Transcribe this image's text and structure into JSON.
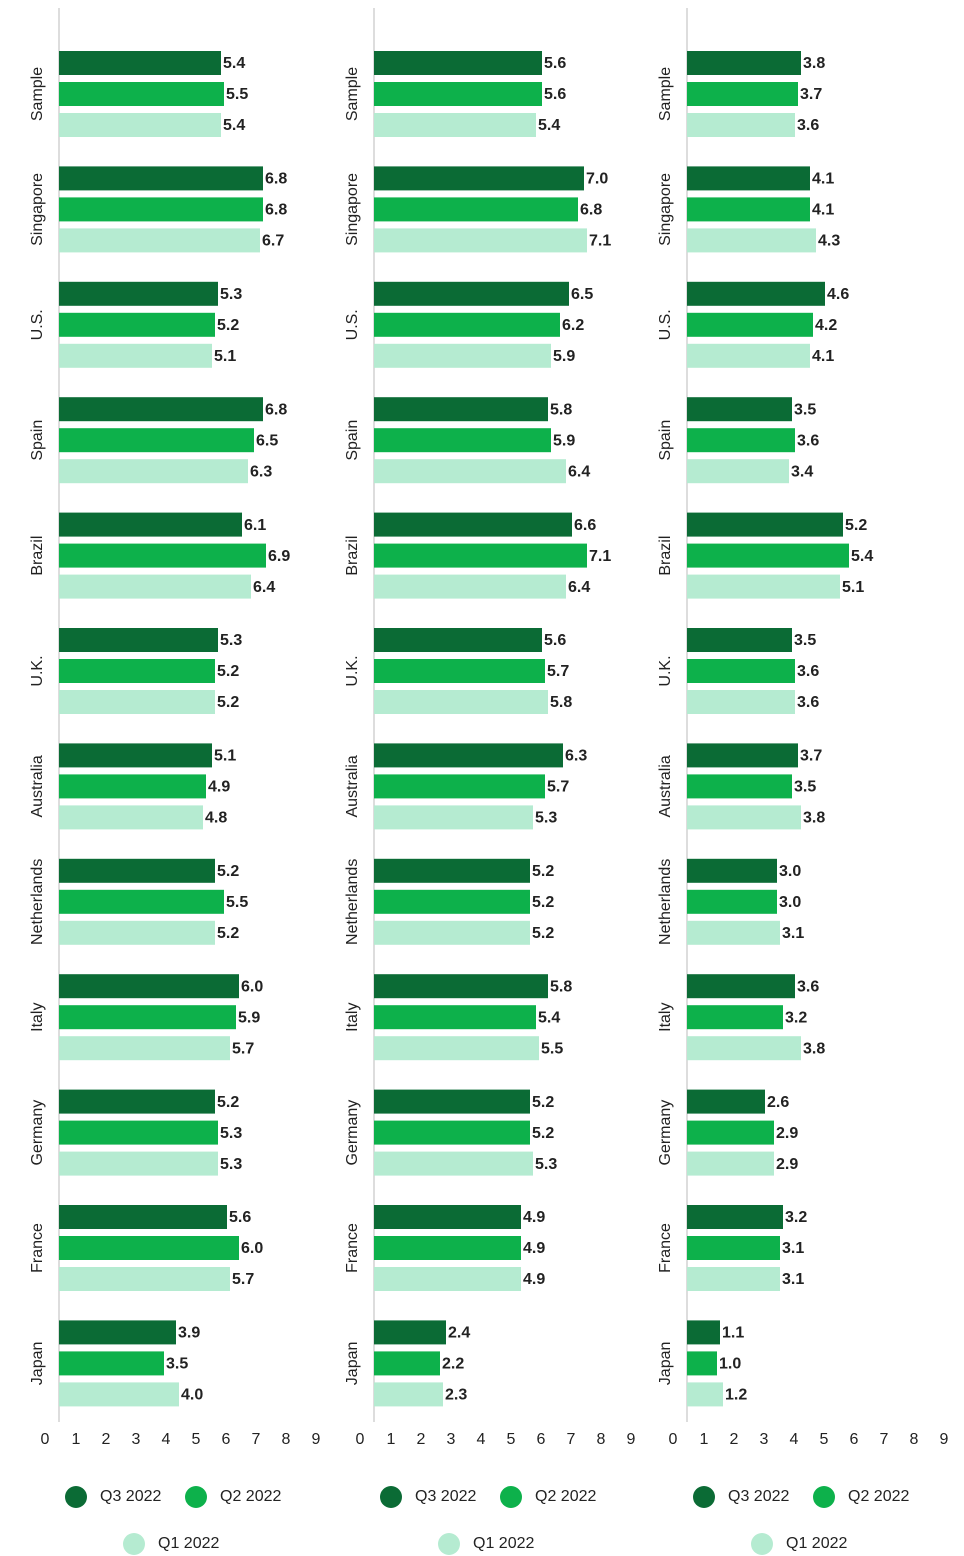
{
  "chart_data": [
    {
      "type": "bar",
      "orientation": "horizontal",
      "categories": [
        "Sample",
        "Singapore",
        "U.S.",
        "Spain",
        "Brazil",
        "U.K.",
        "Australia",
        "Netherlands",
        "Italy",
        "Germany",
        "France",
        "Japan"
      ],
      "series": [
        {
          "name": "Q3 2022",
          "color": "#0b6b35",
          "values": [
            5.4,
            6.8,
            5.3,
            6.8,
            6.1,
            5.3,
            5.1,
            5.2,
            6.0,
            5.2,
            5.6,
            3.9
          ],
          "value_labels": [
            "5.4",
            "6.8",
            "5.3",
            "6.8",
            "6.1",
            "5.3",
            "5.1",
            "5.2",
            "6.0",
            "5.2",
            "5.6",
            "3.9"
          ]
        },
        {
          "name": "Q2 2022",
          "color": "#0db14b",
          "values": [
            5.5,
            6.8,
            5.2,
            6.5,
            6.9,
            5.2,
            4.9,
            5.5,
            5.9,
            5.3,
            6.0,
            3.5
          ],
          "value_labels": [
            "5.5",
            "6.8",
            "5.2",
            "6.5",
            "6.9",
            "5.2",
            "4.9",
            "5.5",
            "5.9",
            "5.3",
            "6.0",
            "3.5"
          ]
        },
        {
          "name": "Q1 2022",
          "color": "#b5ebd1",
          "values": [
            5.4,
            6.7,
            5.1,
            6.3,
            6.4,
            5.2,
            4.8,
            5.2,
            5.7,
            5.3,
            5.7,
            4.0
          ],
          "value_labels": [
            "5.4",
            "6.7",
            "5.1",
            "6.3",
            "6.4",
            "5.2",
            "4.8",
            "5.2",
            "5.7",
            "5.3",
            "5.7",
            "4.0"
          ]
        }
      ],
      "xlim": [
        0,
        9
      ],
      "xticks": [
        0,
        1,
        2,
        3,
        4,
        5,
        6,
        7,
        8,
        9
      ]
    },
    {
      "type": "bar",
      "orientation": "horizontal",
      "categories": [
        "Sample",
        "Singapore",
        "U.S.",
        "Spain",
        "Brazil",
        "U.K.",
        "Australia",
        "Netherlands",
        "Italy",
        "Germany",
        "France",
        "Japan"
      ],
      "series": [
        {
          "name": "Q3 2022",
          "color": "#0b6b35",
          "values": [
            5.6,
            7.0,
            6.5,
            5.8,
            6.6,
            5.6,
            6.3,
            5.2,
            5.8,
            5.2,
            4.9,
            2.4
          ],
          "value_labels": [
            "5.6",
            "7.0",
            "6.5",
            "5.8",
            "6.6",
            "5.6",
            "6.3",
            "5.2",
            "5.8",
            "5.2",
            "4.9",
            "2.4"
          ]
        },
        {
          "name": "Q2 2022",
          "color": "#0db14b",
          "values": [
            5.6,
            6.8,
            6.2,
            5.9,
            7.1,
            5.7,
            5.7,
            5.2,
            5.4,
            5.2,
            4.9,
            2.2
          ],
          "value_labels": [
            "5.6",
            "6.8",
            "6.2",
            "5.9",
            "7.1",
            "5.7",
            "5.7",
            "5.2",
            "5.4",
            "5.2",
            "4.9",
            "2.2"
          ]
        },
        {
          "name": "Q1 2022",
          "color": "#b5ebd1",
          "values": [
            5.4,
            7.1,
            5.9,
            6.4,
            6.4,
            5.8,
            5.3,
            5.2,
            5.5,
            5.3,
            4.9,
            2.3
          ],
          "value_labels": [
            "5.4",
            "7.1",
            "5.9",
            "6.4",
            "6.4",
            "5.8",
            "5.3",
            "5.2",
            "5.5",
            "5.3",
            "4.9",
            "2.3"
          ]
        }
      ],
      "xlim": [
        0,
        9
      ],
      "xticks": [
        0,
        1,
        2,
        3,
        4,
        5,
        6,
        7,
        8,
        9
      ]
    },
    {
      "type": "bar",
      "orientation": "horizontal",
      "categories": [
        "Sample",
        "Singapore",
        "U.S.",
        "Spain",
        "Brazil",
        "U.K.",
        "Australia",
        "Netherlands",
        "Italy",
        "Germany",
        "France",
        "Japan"
      ],
      "series": [
        {
          "name": "Q3 2022",
          "color": "#0b6b35",
          "values": [
            3.8,
            4.1,
            4.6,
            3.5,
            5.2,
            3.5,
            3.7,
            3.0,
            3.6,
            2.6,
            3.2,
            1.1
          ],
          "value_labels": [
            "3.8",
            "4.1",
            "4.6",
            "3.5",
            "5.2",
            "3.5",
            "3.7",
            "3.0",
            "3.6",
            "2.6",
            "3.2",
            "1.1"
          ]
        },
        {
          "name": "Q2 2022",
          "color": "#0db14b",
          "values": [
            3.7,
            4.1,
            4.2,
            3.6,
            5.4,
            3.6,
            3.5,
            3.0,
            3.2,
            2.9,
            3.1,
            1.0
          ],
          "value_labels": [
            "3.7",
            "4.1",
            "4.2",
            "3.6",
            "5.4",
            "3.6",
            "3.5",
            "3.0",
            "3.2",
            "2.9",
            "3.1",
            "1.0"
          ]
        },
        {
          "name": "Q1 2022",
          "color": "#b5ebd1",
          "values": [
            3.6,
            4.3,
            4.1,
            3.4,
            5.1,
            3.6,
            3.8,
            3.1,
            3.8,
            2.9,
            3.1,
            1.2
          ],
          "value_labels": [
            "3.6",
            "4.3",
            "4.1",
            "3.4",
            "5.1",
            "3.6",
            "3.8",
            "3.1",
            "3.8",
            "2.9",
            "3.1",
            "1.2"
          ]
        }
      ],
      "xlim": [
        0,
        9
      ],
      "xticks": [
        0,
        1,
        2,
        3,
        4,
        5,
        6,
        7,
        8,
        9
      ]
    }
  ]
}
